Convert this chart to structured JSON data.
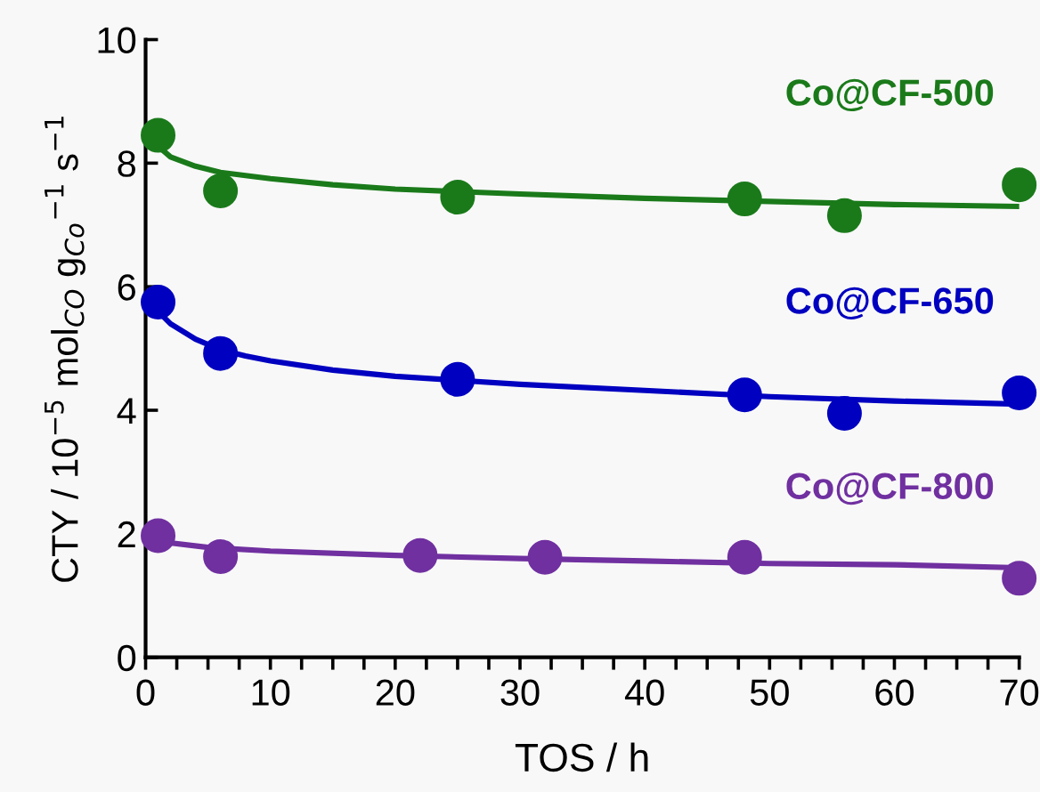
{
  "chart_data": {
    "type": "scatter",
    "xlabel": "TOS / h",
    "ylabel": "CTY / 10$^{−5}$ mol$_{CO}$ g$_{Co}$$^{−1}$ s$^{−1}$",
    "xlim": [
      0,
      70
    ],
    "ylim": [
      0,
      10
    ],
    "xticks": [
      0,
      {
        "value": 2.5,
        "label": null
      },
      {
        "value": 5,
        "label": null
      },
      {
        "value": 7.5,
        "label": null
      },
      10,
      {
        "value": 12.5,
        "label": null
      },
      {
        "value": 15,
        "label": null
      },
      {
        "value": 17.5,
        "label": null
      },
      20,
      {
        "value": 22.5,
        "label": null
      },
      {
        "value": 25,
        "label": null
      },
      {
        "value": 27.5,
        "label": null
      },
      30,
      {
        "value": 32.5,
        "label": null
      },
      {
        "value": 35,
        "label": null
      },
      {
        "value": 37.5,
        "label": null
      },
      40,
      {
        "value": 42.5,
        "label": null
      },
      {
        "value": 45,
        "label": null
      },
      {
        "value": 47.5,
        "label": null
      },
      50,
      {
        "value": 52.5,
        "label": null
      },
      {
        "value": 55,
        "label": null
      },
      {
        "value": 57.5,
        "label": null
      },
      60,
      {
        "value": 62.5,
        "label": null
      },
      {
        "value": 65,
        "label": null
      },
      {
        "value": 67.5,
        "label": null
      },
      70
    ],
    "yticks": [
      0,
      2,
      4,
      6,
      8,
      10
    ],
    "grid": false,
    "marker": "circle",
    "series": [
      {
        "name": "Co@CF-500",
        "color": "#1a7a1a",
        "x": [
          1,
          6,
          25,
          48,
          56,
          70
        ],
        "values": [
          8.45,
          7.55,
          7.45,
          7.42,
          7.15,
          7.65
        ]
      },
      {
        "name": "Co@CF-650",
        "color": "#0000c0",
        "x": [
          1,
          6,
          25,
          48,
          56,
          70
        ],
        "values": [
          5.75,
          4.92,
          4.5,
          4.25,
          3.95,
          4.28
        ]
      },
      {
        "name": "Co@CF-800",
        "color": "#7030a0",
        "x": [
          1,
          6,
          22,
          32,
          48,
          70
        ],
        "values": [
          1.97,
          1.63,
          1.65,
          1.62,
          1.62,
          1.28
        ]
      },
      {
        "type": "line",
        "marker": "none",
        "color": "#1a7a1a",
        "x": [
          0,
          2,
          4,
          6,
          8,
          10,
          15,
          20,
          30,
          40,
          50,
          60,
          70
        ],
        "values": [
          8.45,
          8.1,
          7.95,
          7.85,
          7.8,
          7.75,
          7.65,
          7.58,
          7.5,
          7.43,
          7.38,
          7.33,
          7.3
        ]
      },
      {
        "type": "line",
        "marker": "none",
        "color": "#0000c0",
        "x": [
          0,
          2,
          4,
          6,
          8,
          10,
          15,
          20,
          30,
          40,
          50,
          60,
          70
        ],
        "values": [
          5.8,
          5.4,
          5.15,
          4.98,
          4.88,
          4.8,
          4.65,
          4.55,
          4.42,
          4.32,
          4.22,
          4.15,
          4.1
        ]
      },
      {
        "type": "line",
        "marker": "none",
        "color": "#7030a0",
        "x": [
          0,
          5,
          10,
          20,
          30,
          40,
          50,
          60,
          70
        ],
        "values": [
          1.9,
          1.78,
          1.72,
          1.65,
          1.6,
          1.56,
          1.52,
          1.5,
          1.45
        ]
      }
    ]
  }
}
